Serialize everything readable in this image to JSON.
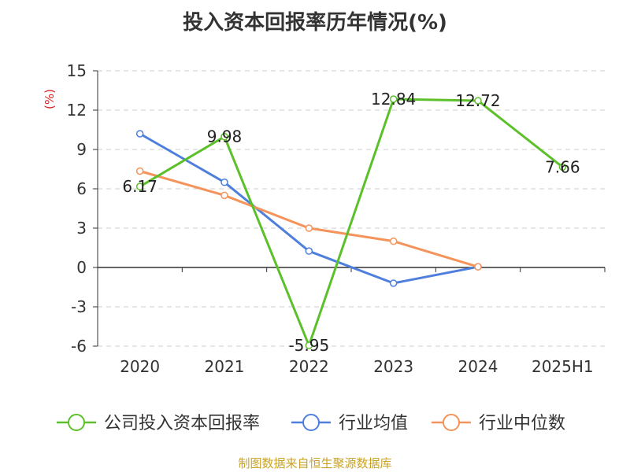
{
  "chart_data": {
    "type": "line",
    "title": "投入资本回报率历年情况(%)",
    "ylabel": "(%)",
    "categories": [
      "2020",
      "2021",
      "2022",
      "2023",
      "2024",
      "2025H1"
    ],
    "ylim": [
      -6,
      15
    ],
    "yticks": [
      -6,
      -3,
      0,
      3,
      6,
      9,
      12,
      15
    ],
    "grid": true,
    "legend_position": "bottom",
    "series": [
      {
        "name": "公司投入资本回报率",
        "color": "#5cc02a",
        "values": [
          6.17,
          9.98,
          -5.95,
          12.84,
          12.72,
          7.66
        ],
        "labels": [
          "6.17",
          "9.98",
          "-5.95",
          "12.84",
          "12.72",
          "7.66"
        ]
      },
      {
        "name": "行业均值",
        "color": "#4f7fdc",
        "values": [
          10.2,
          6.5,
          1.25,
          -1.2,
          0.05,
          null
        ]
      },
      {
        "name": "行业中位数",
        "color": "#f4935a",
        "values": [
          7.35,
          5.5,
          3.0,
          2.0,
          0.05,
          null
        ]
      }
    ]
  },
  "source": "制图数据来自恒生聚源数据库"
}
